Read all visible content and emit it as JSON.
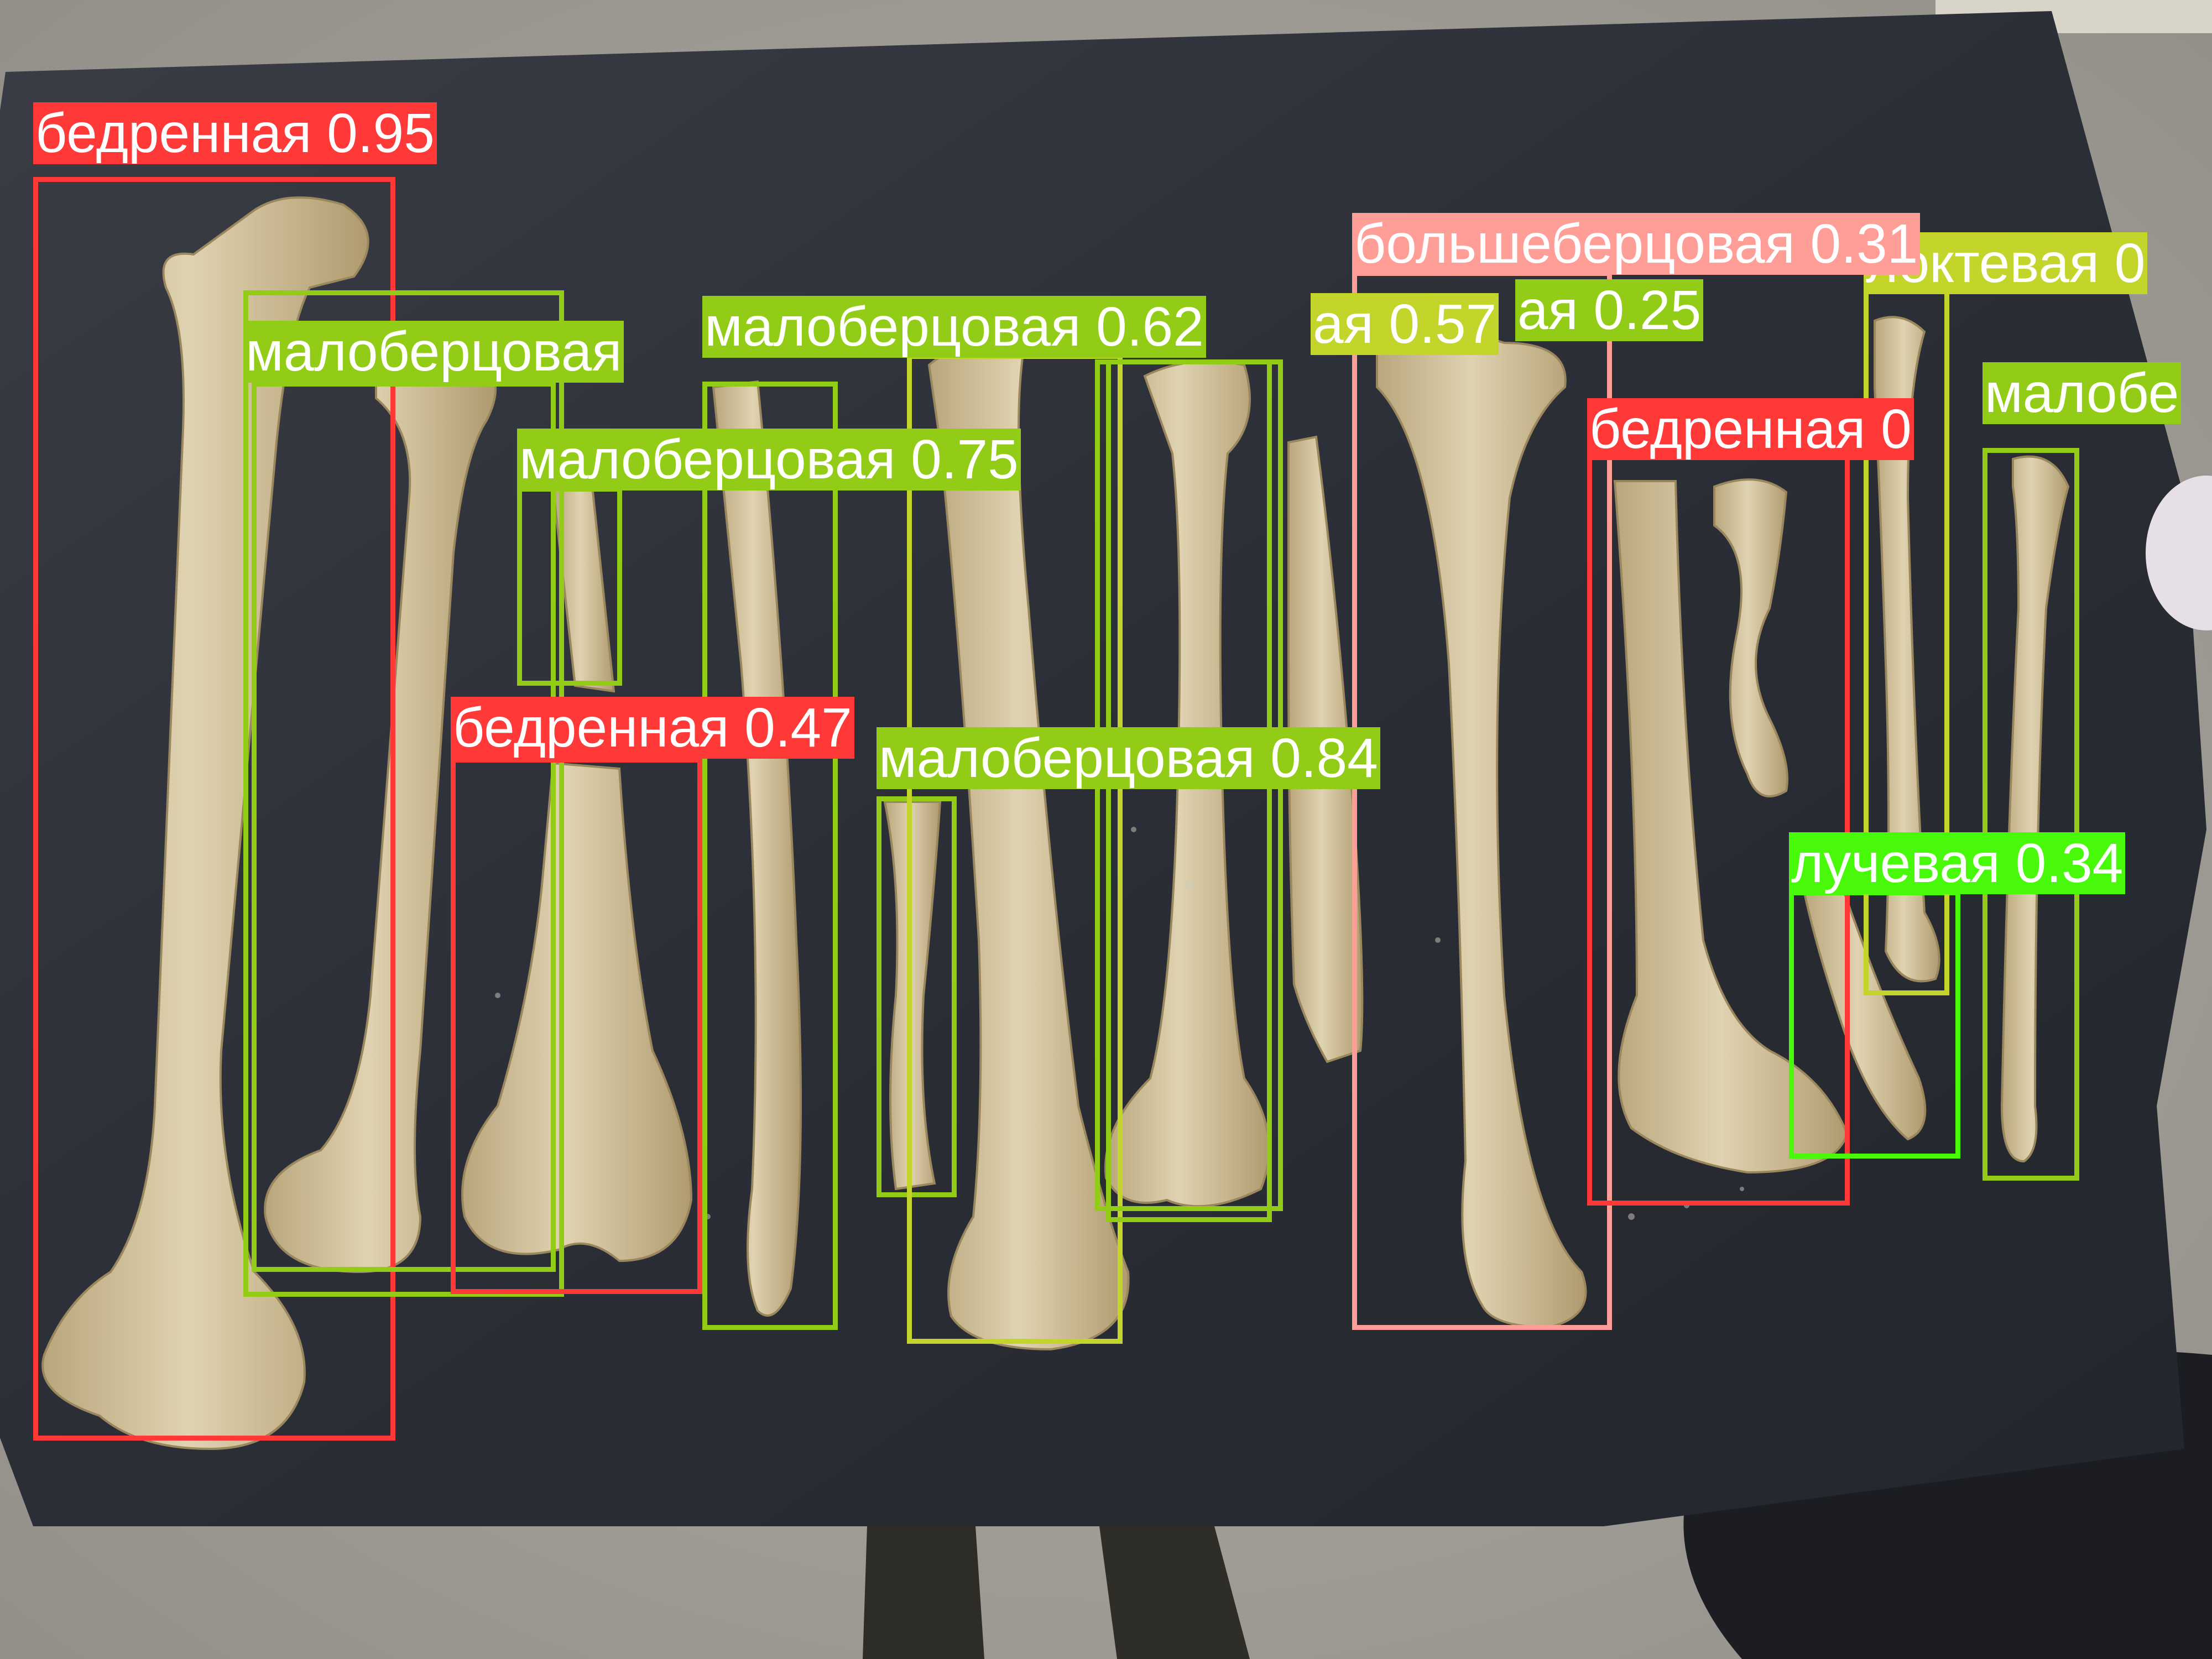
{
  "detections": [
    {
      "label": "бедренная 0.95",
      "color": "#ff3838"
    },
    {
      "label": "малоберцовая",
      "color": "#92cc17"
    },
    {
      "label": "малоберцовая 0.62",
      "color": "#92cc17"
    },
    {
      "label": "ая 0.57",
      "color": "#c3d52a"
    },
    {
      "label": "ая 0.25",
      "color": "#92cc17"
    },
    {
      "label": "большеберцовая 0.31",
      "color": "#ff9d97"
    },
    {
      "label": "локтевая 0",
      "color": "#c3d52a"
    },
    {
      "label": "малоберцовая 0.75",
      "color": "#92cc17"
    },
    {
      "label": "бедренная 0",
      "color": "#ff3838"
    },
    {
      "label": "малобе",
      "color": "#92cc17"
    },
    {
      "label": "бедренная 0.47",
      "color": "#ff3838"
    },
    {
      "label": "малоберцовая 0.84",
      "color": "#92cc17"
    },
    {
      "label": "лучевая 0.34",
      "color": "#48f90a"
    }
  ],
  "scene": {
    "table_color": "#2d3038",
    "floor_color": "#aaa7a0",
    "bone_color": "#d6c7a3",
    "bone_shade_color": "#b9a67c"
  }
}
